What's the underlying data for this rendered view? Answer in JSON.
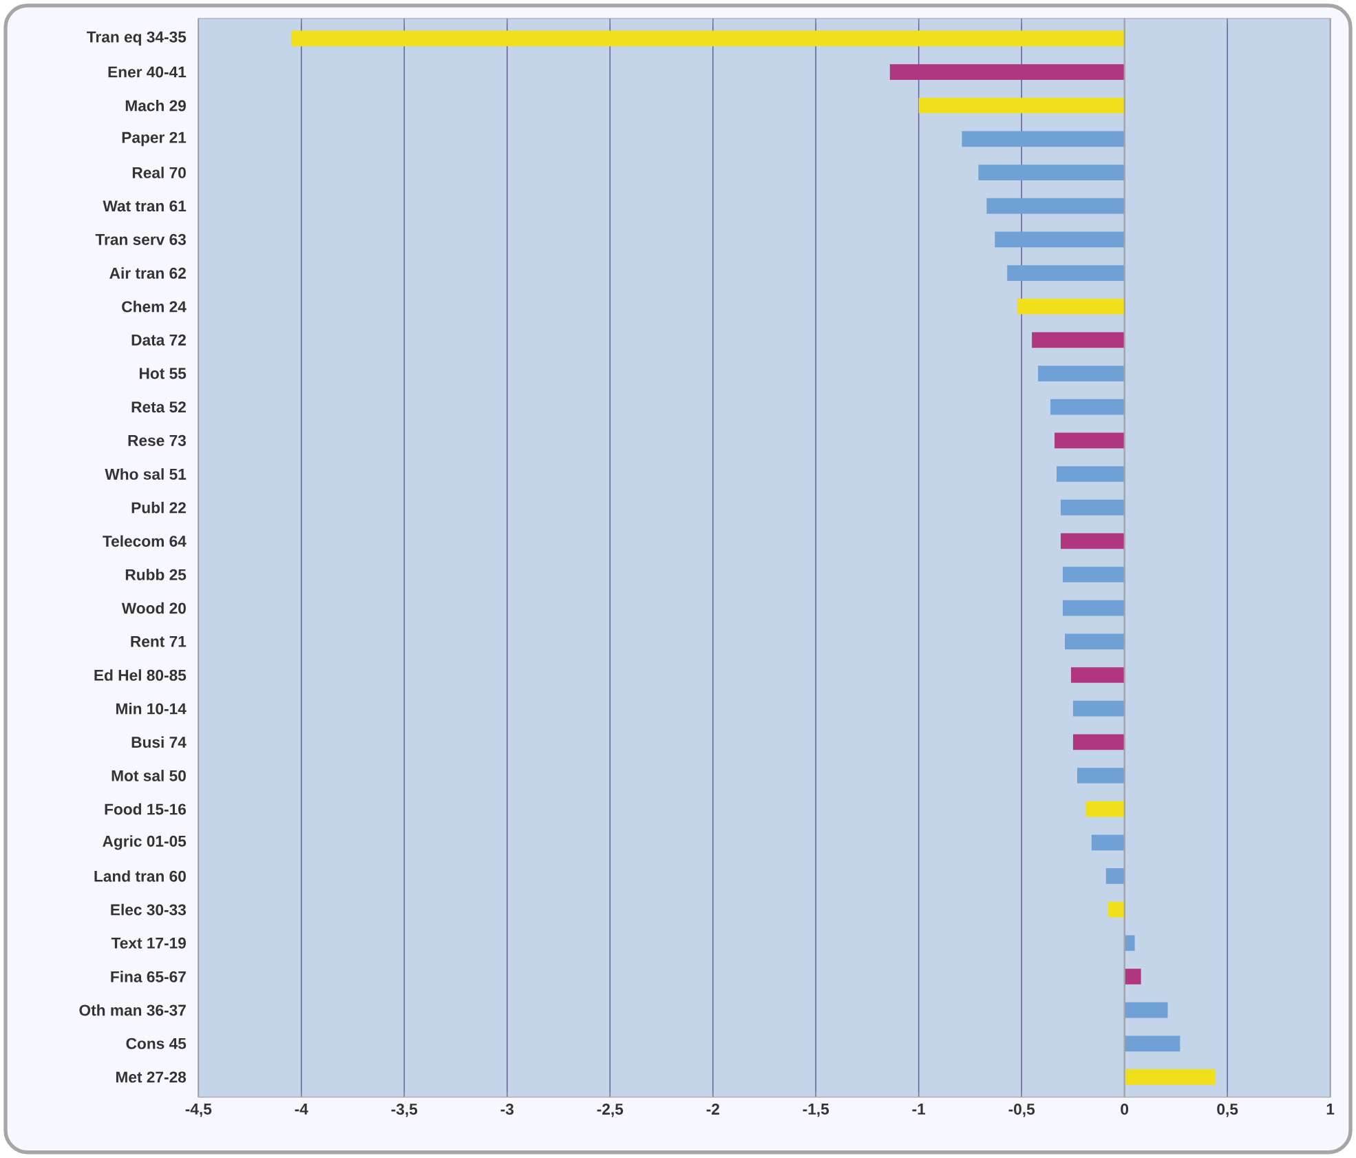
{
  "chart_data": {
    "type": "bar",
    "orientation": "horizontal",
    "grid": "x",
    "categories": [
      "Tran eq 34-35",
      "Ener 40-41",
      "Mach 29",
      "Paper 21",
      "Real 70",
      "Wat tran 61",
      "Tran serv 63",
      "Air tran 62",
      "Chem 24",
      "Data 72",
      "Hot 55",
      "Reta 52",
      "Rese 73",
      "Who sal 51",
      "Publ 22",
      "Telecom 64",
      "Rubb 25",
      "Wood 20",
      "Rent 71",
      "Ed Hel 80-85",
      "Min 10-14",
      "Busi 74",
      "Mot sal 50",
      "Food 15-16",
      "Agric 01-05",
      "Land tran 60",
      "Elec 30-33",
      "Text 17-19",
      "Fina 65-67",
      "Oth man 36-37",
      "Cons 45",
      "Met 27-28"
    ],
    "values": [
      -4.05,
      -1.14,
      -1.0,
      -0.79,
      -0.71,
      -0.67,
      -0.63,
      -0.57,
      -0.52,
      -0.45,
      -0.42,
      -0.36,
      -0.34,
      -0.33,
      -0.31,
      -0.31,
      -0.3,
      -0.3,
      -0.29,
      -0.26,
      -0.25,
      -0.25,
      -0.23,
      -0.19,
      -0.16,
      -0.09,
      -0.08,
      0.05,
      0.08,
      0.21,
      0.27,
      0.44
    ],
    "colors": [
      "#f0e01c",
      "#b0367f",
      "#f0e01c",
      "#6fa0d6",
      "#6fa0d6",
      "#6fa0d6",
      "#6fa0d6",
      "#6fa0d6",
      "#f0e01c",
      "#b0367f",
      "#6fa0d6",
      "#6fa0d6",
      "#b0367f",
      "#6fa0d6",
      "#6fa0d6",
      "#b0367f",
      "#6fa0d6",
      "#6fa0d6",
      "#6fa0d6",
      "#b0367f",
      "#6fa0d6",
      "#b0367f",
      "#6fa0d6",
      "#f0e01c",
      "#6fa0d6",
      "#6fa0d6",
      "#f0e01c",
      "#6fa0d6",
      "#b0367f",
      "#6fa0d6",
      "#6fa0d6",
      "#f0e01c"
    ],
    "xlim": [
      -4.5,
      1
    ],
    "xticks": [
      {
        "value": -4.5,
        "label": "-4,5"
      },
      -4,
      {
        "value": -3.5,
        "label": "-3,5"
      },
      -3,
      {
        "value": -2.5,
        "label": "-2,5"
      },
      -2,
      {
        "value": -1.5,
        "label": "-1,5"
      },
      -1,
      {
        "value": -0.5,
        "label": "-0,5"
      },
      0,
      {
        "value": 0.5,
        "label": "0,5"
      },
      1
    ]
  }
}
